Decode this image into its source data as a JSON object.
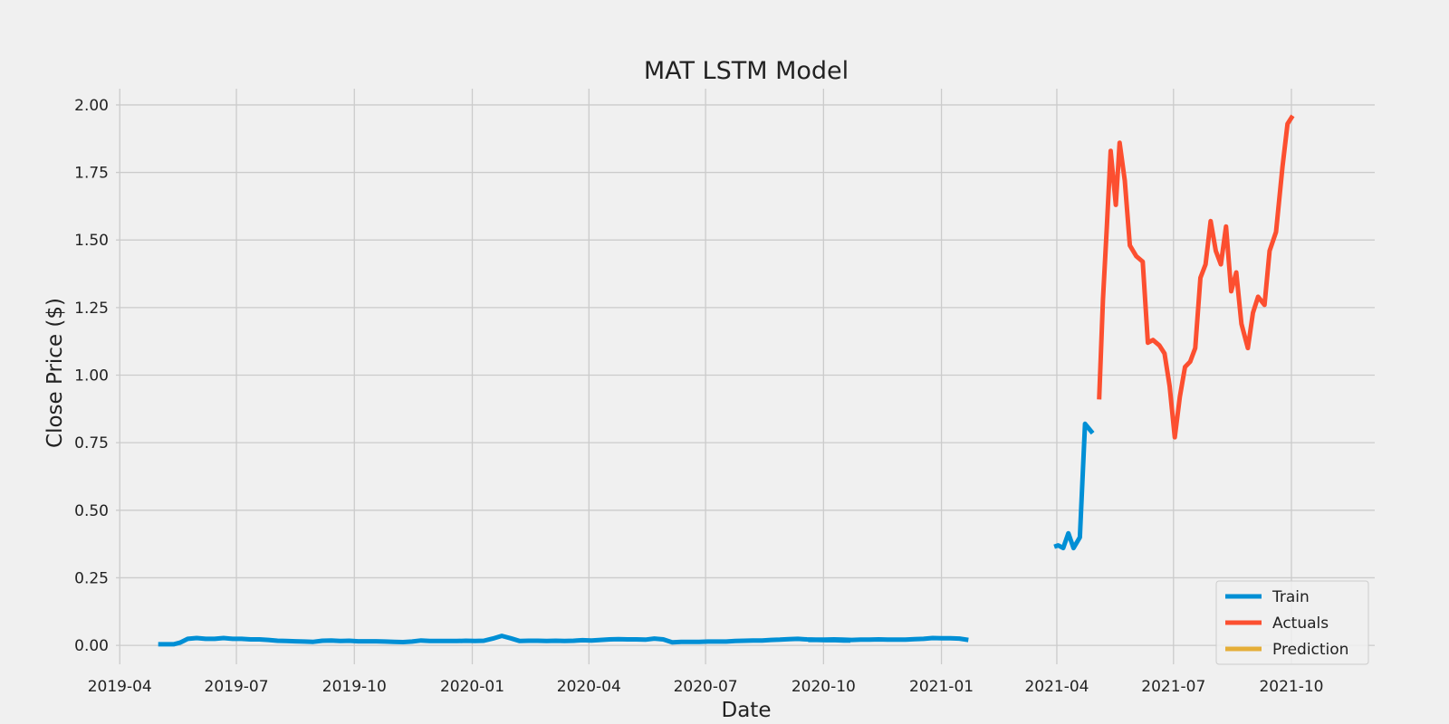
{
  "chart_data": {
    "type": "line",
    "title": "MAT LSTM Model",
    "xlabel": "Date",
    "ylabel": "Close Price ($)",
    "xlim": [
      "2019-03-29",
      "2021-12-05"
    ],
    "ylim": [
      -0.07,
      2.06
    ],
    "x_ticks": [
      "2019-04",
      "2019-07",
      "2019-10",
      "2020-01",
      "2020-04",
      "2020-07",
      "2020-10",
      "2021-01",
      "2021-04",
      "2021-07",
      "2021-10"
    ],
    "y_ticks": [
      "0.00",
      "0.25",
      "0.50",
      "0.75",
      "1.00",
      "1.25",
      "1.50",
      "1.75",
      "2.00"
    ],
    "grid": true,
    "legend_position": "bottom-right",
    "series": [
      {
        "name": "Train",
        "color": "#008fd5",
        "segments": [
          [
            [
              "2019-05-01",
              0.004
            ],
            [
              "2019-05-08",
              0.004
            ],
            [
              "2019-05-13",
              0.004
            ],
            [
              "2019-05-18",
              0.01
            ],
            [
              "2019-05-24",
              0.024
            ],
            [
              "2019-05-31",
              0.027
            ],
            [
              "2019-06-07",
              0.024
            ],
            [
              "2019-06-14",
              0.024
            ],
            [
              "2019-06-21",
              0.027
            ],
            [
              "2019-06-28",
              0.024
            ],
            [
              "2019-07-05",
              0.024
            ],
            [
              "2019-07-12",
              0.022
            ],
            [
              "2019-07-19",
              0.022
            ],
            [
              "2019-07-26",
              0.02
            ],
            [
              "2019-08-02",
              0.017
            ],
            [
              "2019-08-09",
              0.016
            ],
            [
              "2019-08-16",
              0.015
            ],
            [
              "2019-08-23",
              0.014
            ],
            [
              "2019-08-30",
              0.013
            ],
            [
              "2019-09-06",
              0.017
            ],
            [
              "2019-09-13",
              0.018
            ],
            [
              "2019-09-20",
              0.016
            ],
            [
              "2019-09-27",
              0.017
            ],
            [
              "2019-10-04",
              0.015
            ],
            [
              "2019-10-11",
              0.015
            ],
            [
              "2019-10-18",
              0.015
            ],
            [
              "2019-10-25",
              0.014
            ],
            [
              "2019-11-01",
              0.013
            ],
            [
              "2019-11-08",
              0.012
            ],
            [
              "2019-11-15",
              0.014
            ],
            [
              "2019-11-22",
              0.018
            ],
            [
              "2019-11-29",
              0.016
            ],
            [
              "2019-12-06",
              0.016
            ],
            [
              "2019-12-13",
              0.016
            ],
            [
              "2019-12-20",
              0.016
            ],
            [
              "2019-12-27",
              0.017
            ],
            [
              "2020-01-03",
              0.016
            ],
            [
              "2020-01-10",
              0.017
            ],
            [
              "2020-01-17",
              0.025
            ],
            [
              "2020-01-24",
              0.035
            ],
            [
              "2020-01-31",
              0.026
            ],
            [
              "2020-02-07",
              0.016
            ],
            [
              "2020-02-14",
              0.017
            ],
            [
              "2020-02-21",
              0.017
            ],
            [
              "2020-02-28",
              0.016
            ],
            [
              "2020-03-06",
              0.017
            ],
            [
              "2020-03-13",
              0.016
            ],
            [
              "2020-03-20",
              0.017
            ],
            [
              "2020-03-27",
              0.019
            ],
            [
              "2020-04-03",
              0.018
            ],
            [
              "2020-04-10",
              0.02
            ],
            [
              "2020-04-17",
              0.022
            ],
            [
              "2020-04-24",
              0.023
            ],
            [
              "2020-05-01",
              0.022
            ],
            [
              "2020-05-08",
              0.022
            ],
            [
              "2020-05-15",
              0.021
            ],
            [
              "2020-05-22",
              0.025
            ],
            [
              "2020-05-29",
              0.022
            ],
            [
              "2020-06-05",
              0.011
            ],
            [
              "2020-06-12",
              0.013
            ],
            [
              "2020-06-19",
              0.013
            ],
            [
              "2020-06-26",
              0.013
            ],
            [
              "2020-07-03",
              0.014
            ],
            [
              "2020-07-10",
              0.014
            ],
            [
              "2020-07-17",
              0.014
            ],
            [
              "2020-07-24",
              0.016
            ],
            [
              "2020-07-31",
              0.017
            ],
            [
              "2020-08-07",
              0.018
            ],
            [
              "2020-08-14",
              0.018
            ],
            [
              "2020-08-21",
              0.02
            ],
            [
              "2020-08-28",
              0.021
            ],
            [
              "2020-09-04",
              0.023
            ],
            [
              "2020-09-11",
              0.024
            ],
            [
              "2020-09-18",
              0.022
            ],
            [
              "2020-09-25",
              0.021
            ],
            [
              "2020-10-02",
              0.021
            ],
            [
              "2020-10-09",
              0.022
            ],
            [
              "2020-10-16",
              0.021
            ],
            [
              "2020-10-23",
              0.02
            ],
            [
              "2020-10-30",
              0.021
            ],
            [
              "2020-11-06",
              0.021
            ],
            [
              "2020-11-13",
              0.022
            ],
            [
              "2020-11-20",
              0.021
            ],
            [
              "2020-11-27",
              0.021
            ],
            [
              "2020-12-04",
              0.021
            ],
            [
              "2020-12-11",
              0.023
            ],
            [
              "2020-12-18",
              0.024
            ],
            [
              "2020-12-25",
              0.027
            ],
            [
              "2021-01-01",
              0.026
            ],
            [
              "2021-01-08",
              0.026
            ],
            [
              "2021-01-15",
              0.025
            ],
            [
              "2021-01-22",
              0.02
            ]
          ],
          [
            [
              "2020-09-19",
              0.02
            ],
            [
              "2020-09-26",
              0.02
            ],
            [
              "2020-10-03",
              0.019
            ],
            [
              "2020-10-10",
              0.019
            ],
            [
              "2020-10-17",
              0.018
            ],
            [
              "2020-10-22",
              0.018
            ]
          ],
          [
            [
              "2021-03-30",
              0.365
            ],
            [
              "2021-04-02",
              0.37
            ],
            [
              "2021-04-06",
              0.36
            ],
            [
              "2021-04-10",
              0.415
            ],
            [
              "2021-04-14",
              0.36
            ],
            [
              "2021-04-19",
              0.4
            ],
            [
              "2021-04-23",
              0.82
            ],
            [
              "2021-04-29",
              0.785
            ]
          ]
        ]
      },
      {
        "name": "Actuals",
        "color": "#fc4f30",
        "segments": [
          [
            [
              "2021-05-04",
              0.91
            ],
            [
              "2021-05-07",
              1.28
            ],
            [
              "2021-05-10",
              1.55
            ],
            [
              "2021-05-13",
              1.83
            ],
            [
              "2021-05-17",
              1.63
            ],
            [
              "2021-05-20",
              1.86
            ],
            [
              "2021-05-24",
              1.72
            ],
            [
              "2021-05-28",
              1.48
            ],
            [
              "2021-06-02",
              1.44
            ],
            [
              "2021-06-07",
              1.42
            ],
            [
              "2021-06-11",
              1.12
            ],
            [
              "2021-06-15",
              1.13
            ],
            [
              "2021-06-20",
              1.11
            ],
            [
              "2021-06-24",
              1.08
            ],
            [
              "2021-06-28",
              0.96
            ],
            [
              "2021-07-02",
              0.77
            ],
            [
              "2021-07-06",
              0.92
            ],
            [
              "2021-07-10",
              1.03
            ],
            [
              "2021-07-14",
              1.05
            ],
            [
              "2021-07-18",
              1.1
            ],
            [
              "2021-07-22",
              1.36
            ],
            [
              "2021-07-26",
              1.41
            ],
            [
              "2021-07-30",
              1.57
            ],
            [
              "2021-08-03",
              1.46
            ],
            [
              "2021-08-07",
              1.41
            ],
            [
              "2021-08-11",
              1.55
            ],
            [
              "2021-08-15",
              1.31
            ],
            [
              "2021-08-19",
              1.38
            ],
            [
              "2021-08-23",
              1.19
            ],
            [
              "2021-08-28",
              1.1
            ],
            [
              "2021-09-01",
              1.23
            ],
            [
              "2021-09-05",
              1.29
            ],
            [
              "2021-09-10",
              1.26
            ],
            [
              "2021-09-14",
              1.46
            ],
            [
              "2021-09-19",
              1.53
            ],
            [
              "2021-09-24",
              1.77
            ],
            [
              "2021-09-28",
              1.93
            ],
            [
              "2021-10-02",
              1.96
            ]
          ]
        ]
      },
      {
        "name": "Prediction",
        "color": "#e5ae38",
        "segments": []
      }
    ]
  }
}
